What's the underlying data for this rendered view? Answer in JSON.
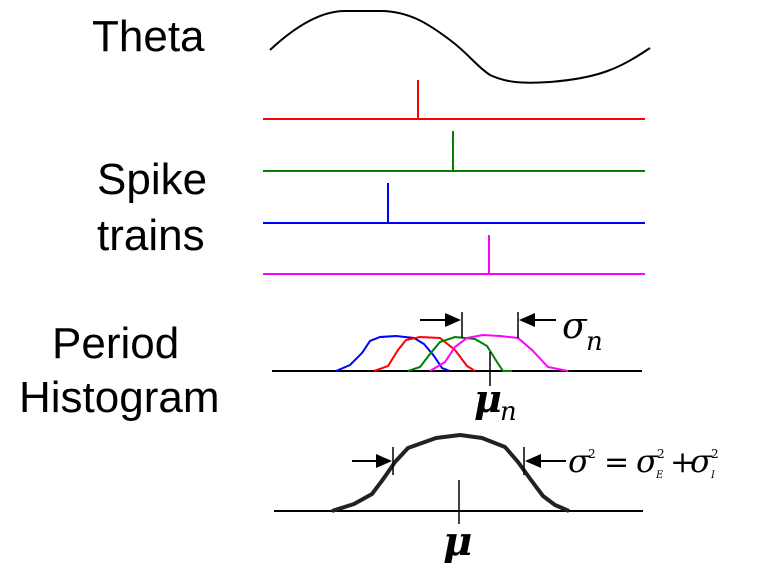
{
  "labels": {
    "theta": "Theta",
    "spike_line1": "Spike",
    "spike_line2": "trains",
    "period_line1": "Period",
    "period_line2": "Histogram"
  },
  "symbols": {
    "sigma": "σ",
    "sub_n": "n",
    "mu": "μ",
    "sup_2": "2",
    "equals": "=",
    "plus": "+",
    "sub_E": "E",
    "sub_I": "I"
  },
  "colors": {
    "train_red": "#ff0000",
    "train_green": "#008000",
    "train_blue": "#0000ff",
    "train_magenta": "#ff00ff",
    "ink": "#000000"
  }
}
